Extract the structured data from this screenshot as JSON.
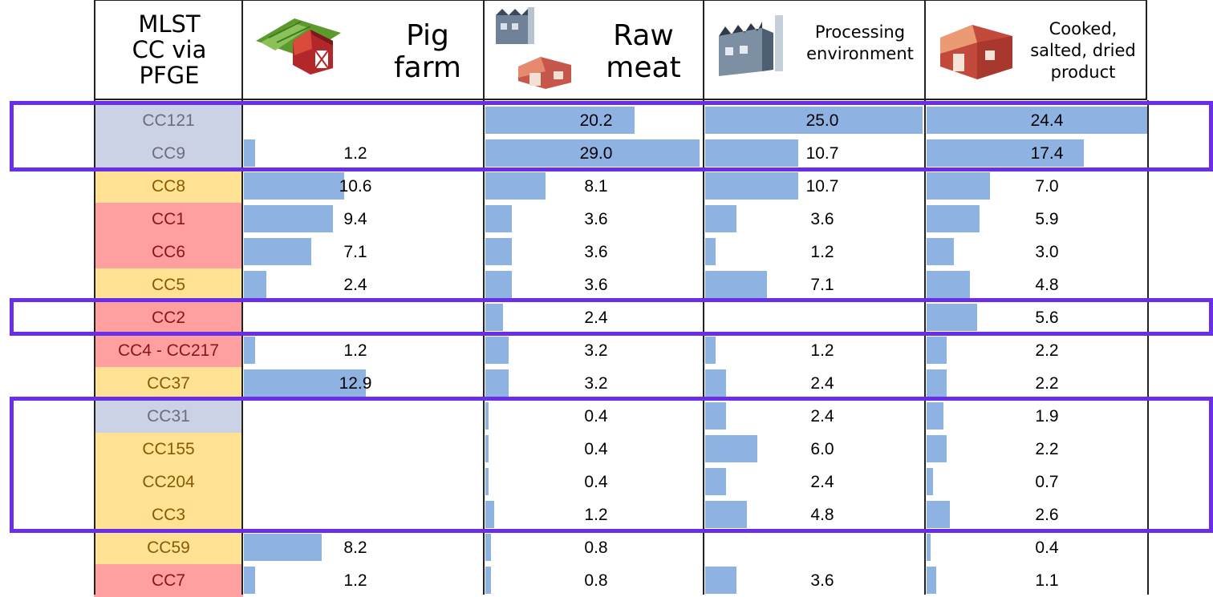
{
  "chart_data": {
    "type": "table",
    "columns": [
      {
        "title": "MLST\nCC via\nPFGE"
      },
      {
        "title": "Pig\nfarm"
      },
      {
        "title": "Raw\nmeat"
      },
      {
        "title": "Processing\nenvironment"
      },
      {
        "title": "Cooked,\nsalted, dried\nproduct"
      }
    ],
    "rows": [
      {
        "cc": "CC121",
        "color": "grey",
        "values": [
          null,
          20.2,
          25.0,
          24.4
        ],
        "labels": [
          "",
          "20.2",
          "25.0",
          "24.4"
        ]
      },
      {
        "cc": "CC9",
        "color": "grey",
        "values": [
          1.2,
          29.0,
          10.7,
          17.4
        ],
        "labels": [
          "1.2",
          "29.0",
          "10.7",
          "17.4"
        ]
      },
      {
        "cc": "CC8",
        "color": "yellow",
        "values": [
          10.6,
          8.1,
          10.7,
          7.0
        ],
        "labels": [
          "10.6",
          "8.1",
          "10.7",
          "7.0"
        ]
      },
      {
        "cc": "CC1",
        "color": "red",
        "values": [
          9.4,
          3.6,
          3.6,
          5.9
        ],
        "labels": [
          "9.4",
          "3.6",
          "3.6",
          "5.9"
        ]
      },
      {
        "cc": "CC6",
        "color": "red",
        "values": [
          7.1,
          3.6,
          1.2,
          3.0
        ],
        "labels": [
          "7.1",
          "3.6",
          "1.2",
          "3.0"
        ]
      },
      {
        "cc": "CC5",
        "color": "yellow",
        "values": [
          2.4,
          3.6,
          7.1,
          4.8
        ],
        "labels": [
          "2.4",
          "3.6",
          "7.1",
          "4.8"
        ]
      },
      {
        "cc": "CC2",
        "color": "red",
        "values": [
          null,
          2.4,
          null,
          5.6
        ],
        "labels": [
          "",
          "2.4",
          "",
          "5.6"
        ]
      },
      {
        "cc": "CC4 - CC217",
        "color": "red",
        "values": [
          1.2,
          3.2,
          1.2,
          2.2
        ],
        "labels": [
          "1.2",
          "3.2",
          "1.2",
          "2.2"
        ]
      },
      {
        "cc": "CC37",
        "color": "yellow",
        "values": [
          12.9,
          3.2,
          2.4,
          2.2
        ],
        "labels": [
          "12.9",
          "3.2",
          "2.4",
          "2.2"
        ]
      },
      {
        "cc": "CC31",
        "color": "grey",
        "values": [
          null,
          0.4,
          2.4,
          1.9
        ],
        "labels": [
          "",
          "0.4",
          "2.4",
          "1.9"
        ]
      },
      {
        "cc": "CC155",
        "color": "yellow",
        "values": [
          null,
          0.4,
          6.0,
          2.2
        ],
        "labels": [
          "",
          "0.4",
          "6.0",
          "2.2"
        ]
      },
      {
        "cc": "CC204",
        "color": "yellow",
        "values": [
          null,
          0.4,
          2.4,
          0.7
        ],
        "labels": [
          "",
          "0.4",
          "2.4",
          "0.7"
        ]
      },
      {
        "cc": "CC3",
        "color": "yellow",
        "values": [
          null,
          1.2,
          4.8,
          2.6
        ],
        "labels": [
          "",
          "1.2",
          "4.8",
          "2.6"
        ]
      },
      {
        "cc": "CC59",
        "color": "yellow",
        "values": [
          8.2,
          0.8,
          null,
          0.4
        ],
        "labels": [
          "8.2",
          "0.8",
          "",
          "0.4"
        ]
      },
      {
        "cc": "CC7",
        "color": "red",
        "values": [
          1.2,
          0.8,
          3.6,
          1.1
        ],
        "labels": [
          "1.2",
          "0.8",
          "3.6",
          "1.1"
        ]
      }
    ],
    "bar_scale_max": [
      20.2,
      29.0,
      25.0,
      24.4
    ],
    "highlight_groups": [
      [
        "CC121",
        "CC9"
      ],
      [
        "CC2"
      ],
      [
        "CC31",
        "CC155",
        "CC204",
        "CC3"
      ]
    ],
    "colors": {
      "grey": "#ccd2e6",
      "yellow": "#ffe294",
      "red": "#ff9f9f",
      "bar": "#8eb3e3",
      "highlight": "#6a2ee8"
    }
  },
  "icons": [
    "farm-icon",
    "factory-icon",
    "meat-plant-icon",
    "factory-icon",
    "meat-plant-icon"
  ]
}
